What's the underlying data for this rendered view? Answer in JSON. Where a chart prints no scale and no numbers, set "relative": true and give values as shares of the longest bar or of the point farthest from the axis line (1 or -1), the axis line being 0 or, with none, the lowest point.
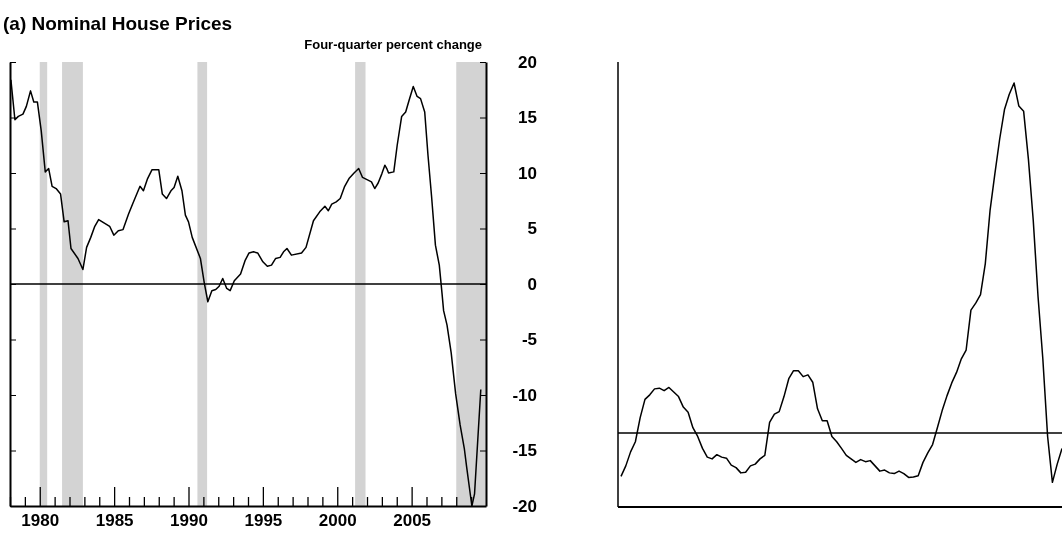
{
  "chart_data": [
    {
      "type": "line",
      "title": "(a) Nominal House Prices",
      "ylabel": "Four-quarter percent change",
      "x": [
        1978.06,
        1978.33,
        1978.56,
        1978.87,
        1979.1,
        1979.38,
        1979.6,
        1979.84,
        1980.1,
        1980.37,
        1980.6,
        1980.83,
        1981.1,
        1981.4,
        1981.64,
        1981.9,
        1982.1,
        1982.57,
        1982.9,
        1983.15,
        1983.43,
        1983.7,
        1983.96,
        1984.7,
        1984.98,
        1985.28,
        1985.6,
        1985.97,
        1986.27,
        1986.74,
        1986.97,
        1987.25,
        1987.55,
        1988.0,
        1988.24,
        1988.52,
        1988.82,
        1989.03,
        1989.28,
        1989.56,
        1989.79,
        1990.0,
        1990.25,
        1990.8,
        1991.06,
        1991.3,
        1991.57,
        1991.83,
        1992.06,
        1992.3,
        1992.57,
        1992.8,
        1993.08,
        1993.5,
        1993.8,
        1994.07,
        1994.37,
        1994.65,
        1995.0,
        1995.3,
        1995.58,
        1995.86,
        1996.16,
        1996.39,
        1996.62,
        1996.92,
        1997.6,
        1997.9,
        1998.4,
        1998.82,
        1999.17,
        1999.4,
        1999.63,
        1999.93,
        2000.2,
        2000.5,
        2000.79,
        2001.13,
        2001.44,
        2001.7,
        2002.0,
        2002.3,
        2002.52,
        2002.75,
        2002.99,
        2003.2,
        2003.33,
        2003.45,
        2003.8,
        2004.03,
        2004.33,
        2004.6,
        2004.84,
        2005.11,
        2005.37,
        2005.6,
        2005.88,
        2006.1,
        2006.34,
        2006.6,
        2006.86,
        2007.04,
        2007.15,
        2007.38,
        2007.66,
        2007.96,
        2008.26,
        2008.54,
        2008.7,
        2008.96,
        2009.05,
        2009.23,
        2009.65
      ],
      "series": [
        {
          "color": "#000000",
          "values": [
            18.4,
            14.8,
            15.1,
            15.3,
            16.0,
            17.4,
            16.4,
            16.4,
            13.8,
            10.1,
            10.4,
            8.8,
            8.6,
            8.1,
            5.6,
            5.7,
            3.2,
            2.3,
            1.3,
            3.3,
            4.2,
            5.2,
            5.8,
            5.2,
            4.4,
            4.8,
            4.9,
            6.3,
            7.3,
            8.8,
            8.4,
            9.5,
            10.3,
            10.3,
            8.1,
            7.7,
            8.4,
            8.7,
            9.7,
            8.4,
            6.2,
            5.6,
            4.2,
            2.3,
            0.1,
            -1.6,
            -0.6,
            -0.5,
            -0.2,
            0.5,
            -0.4,
            -0.6,
            0.3,
            0.9,
            2.1,
            2.8,
            2.9,
            2.8,
            2.0,
            1.6,
            1.7,
            2.3,
            2.4,
            2.9,
            3.2,
            2.6,
            2.8,
            3.3,
            5.7,
            6.5,
            7.0,
            6.6,
            7.2,
            7.4,
            7.7,
            8.8,
            9.5,
            10.0,
            10.4,
            9.6,
            9.4,
            9.2,
            8.6,
            9.1,
            9.9,
            10.7,
            10.4,
            10.0,
            10.1,
            12.5,
            15.1,
            15.5,
            16.6,
            17.8,
            16.9,
            16.7,
            15.5,
            11.6,
            7.9,
            3.5,
            1.7,
            -0.8,
            -2.4,
            -3.7,
            -6.2,
            -9.9,
            -12.7,
            -14.8,
            -16.5,
            -19.1,
            -20.0,
            -18.9,
            -9.5
          ]
        }
      ],
      "xlim": [
        1978,
        2010
      ],
      "ylim": [
        -20,
        20
      ],
      "yticks": [
        -20,
        -15,
        -10,
        -5,
        0,
        5,
        10,
        15,
        20
      ],
      "xticks": [
        {
          "value": 1978,
          "label": null
        },
        {
          "value": 1979,
          "label": null
        },
        1980,
        {
          "value": 1981,
          "label": null
        },
        {
          "value": 1982,
          "label": null
        },
        {
          "value": 1983,
          "label": null
        },
        {
          "value": 1984,
          "label": null
        },
        1985,
        {
          "value": 1986,
          "label": null
        },
        {
          "value": 1987,
          "label": null
        },
        {
          "value": 1988,
          "label": null
        },
        {
          "value": 1989,
          "label": null
        },
        1990,
        {
          "value": 1991,
          "label": null
        },
        {
          "value": 1992,
          "label": null
        },
        {
          "value": 1993,
          "label": null
        },
        {
          "value": 1994,
          "label": null
        },
        1995,
        {
          "value": 1996,
          "label": null
        },
        {
          "value": 1997,
          "label": null
        },
        {
          "value": 1998,
          "label": null
        },
        {
          "value": 1999,
          "label": null
        },
        2000,
        {
          "value": 2001,
          "label": null
        },
        {
          "value": 2002,
          "label": null
        },
        {
          "value": 2003,
          "label": null
        },
        {
          "value": 2004,
          "label": null
        },
        2005,
        {
          "value": 2006,
          "label": null
        },
        {
          "value": 2007,
          "label": null
        },
        {
          "value": 2008,
          "label": null
        },
        {
          "value": 2009,
          "label": null
        }
      ],
      "bands": [
        {
          "axis": "x",
          "from": 1980.0,
          "to": 1980.5,
          "color": "#d3d3d3"
        },
        {
          "axis": "x",
          "from": 1981.5,
          "to": 1982.9,
          "color": "#d3d3d3"
        },
        {
          "axis": "x",
          "from": 1990.6,
          "to": 1991.25,
          "color": "#d3d3d3"
        },
        {
          "axis": "x",
          "from": 2001.2,
          "to": 2001.9,
          "color": "#d3d3d3"
        },
        {
          "axis": "x",
          "from": 2008.0,
          "to": 2010.0,
          "color": "#d3d3d3"
        }
      ],
      "ref_lines": [
        {
          "axis": "y",
          "value": 0,
          "color": "#000000"
        }
      ]
    },
    {
      "type": "line",
      "relative": true,
      "categories": [
        null,
        null,
        null,
        null,
        null,
        null,
        null,
        null,
        null,
        null,
        null,
        null,
        null,
        null,
        null,
        null,
        null,
        null,
        null,
        null,
        null,
        null,
        null,
        null,
        null,
        null,
        null,
        null,
        null,
        null,
        null,
        null,
        null,
        null,
        null,
        null,
        null,
        null,
        null,
        null,
        null,
        null,
        null,
        null,
        null,
        null,
        null,
        null,
        null,
        null,
        null,
        null,
        null,
        null,
        null,
        null,
        null,
        null,
        null,
        null,
        null,
        null,
        null,
        null,
        null,
        null,
        null,
        null,
        null,
        null,
        null,
        null,
        null,
        null,
        null,
        null,
        null,
        null,
        null,
        null,
        null,
        null,
        null,
        null,
        null,
        null,
        null,
        null,
        null,
        null,
        null,
        null,
        null
      ],
      "series": [
        {
          "color": "#000000",
          "values": [
            -0.124,
            -0.094,
            -0.054,
            -0.025,
            0.044,
            0.096,
            0.109,
            0.126,
            0.128,
            0.121,
            0.13,
            0.117,
            0.104,
            0.074,
            0.059,
            0.015,
            -0.01,
            -0.044,
            -0.069,
            -0.074,
            -0.062,
            -0.069,
            -0.072,
            -0.092,
            -0.099,
            -0.114,
            -0.112,
            -0.094,
            -0.089,
            -0.074,
            -0.064,
            0.03,
            0.054,
            0.061,
            0.104,
            0.155,
            0.178,
            0.178,
            0.161,
            0.166,
            0.145,
            0.069,
            0.035,
            0.035,
            -0.01,
            -0.025,
            -0.044,
            -0.064,
            -0.074,
            -0.084,
            -0.076,
            -0.082,
            -0.079,
            -0.094,
            -0.109,
            -0.106,
            -0.114,
            -0.116,
            -0.109,
            -0.116,
            -0.127,
            -0.126,
            -0.122,
            -0.084,
            -0.057,
            -0.033,
            0.015,
            0.064,
            0.106,
            0.143,
            0.173,
            0.212,
            0.237,
            0.351,
            0.371,
            0.395,
            0.484,
            0.637,
            0.741,
            0.84,
            0.924,
            0.968,
            1.0,
            0.934,
            0.919,
            0.781,
            0.608,
            0.39,
            0.212,
            -0.01,
            -0.141,
            -0.089,
            -0.044
          ]
        }
      ],
      "line_style": "solid"
    }
  ]
}
